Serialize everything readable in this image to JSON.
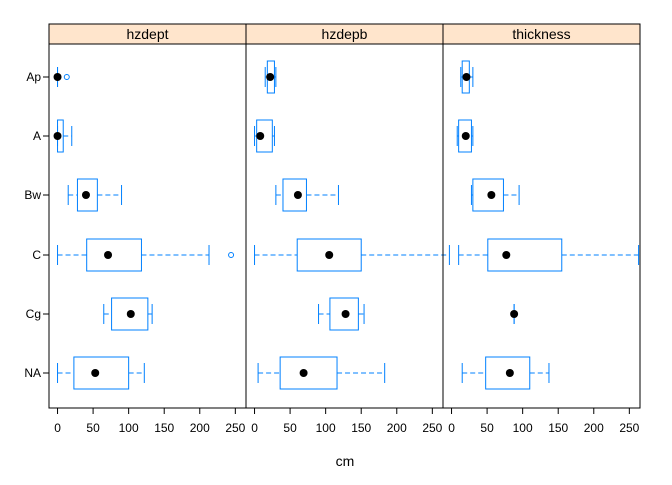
{
  "chart_data": {
    "type": "boxplot",
    "xlabel": "cm",
    "categories": [
      "Ap",
      "A",
      "Bw",
      "C",
      "Cg",
      "NA"
    ],
    "panels": [
      {
        "name": "hzdept",
        "boxes": [
          {
            "category": "Ap",
            "min": 0,
            "q1": 0,
            "median": 0,
            "q3": 0,
            "max": 0,
            "outliers": [
              13
            ]
          },
          {
            "category": "A",
            "min": 0,
            "q1": 0,
            "median": 0,
            "q3": 8,
            "max": 20,
            "outliers": []
          },
          {
            "category": "Bw",
            "min": 15,
            "q1": 28,
            "median": 40,
            "q3": 56,
            "max": 90,
            "outliers": []
          },
          {
            "category": "C",
            "min": 0,
            "q1": 41,
            "median": 71,
            "q3": 118,
            "max": 213,
            "outliers": [
              244
            ]
          },
          {
            "category": "Cg",
            "min": 65,
            "q1": 76,
            "median": 103,
            "q3": 127,
            "max": 133,
            "outliers": []
          },
          {
            "category": "NA",
            "min": 0,
            "q1": 23,
            "median": 53,
            "q3": 100,
            "max": 122,
            "outliers": []
          }
        ]
      },
      {
        "name": "hzdepb",
        "boxes": [
          {
            "category": "Ap",
            "min": 15,
            "q1": 18,
            "median": 22,
            "q3": 28,
            "max": 30,
            "outliers": []
          },
          {
            "category": "A",
            "min": 0,
            "q1": 3,
            "median": 8,
            "q3": 25,
            "max": 28,
            "outliers": []
          },
          {
            "category": "Bw",
            "min": 30,
            "q1": 40,
            "median": 61,
            "q3": 73,
            "max": 118,
            "outliers": []
          },
          {
            "category": "C",
            "min": 0,
            "q1": 60,
            "median": 105,
            "q3": 150,
            "max": 274,
            "outliers": []
          },
          {
            "category": "Cg",
            "min": 90,
            "q1": 106,
            "median": 128,
            "q3": 146,
            "max": 154,
            "outliers": []
          },
          {
            "category": "NA",
            "min": 5,
            "q1": 36,
            "median": 69,
            "q3": 116,
            "max": 183,
            "outliers": []
          }
        ]
      },
      {
        "name": "thickness",
        "boxes": [
          {
            "category": "Ap",
            "min": 13,
            "q1": 15,
            "median": 21,
            "q3": 25,
            "max": 30,
            "outliers": []
          },
          {
            "category": "A",
            "min": 8,
            "q1": 10,
            "median": 20,
            "q3": 28,
            "max": 30,
            "outliers": []
          },
          {
            "category": "Bw",
            "min": 28,
            "q1": 30,
            "median": 56,
            "q3": 73,
            "max": 95,
            "outliers": []
          },
          {
            "category": "C",
            "min": 10,
            "q1": 51,
            "median": 77,
            "q3": 155,
            "max": 263,
            "outliers": []
          },
          {
            "category": "Cg",
            "min": 88,
            "q1": 88,
            "median": 88,
            "q3": 88,
            "max": 88,
            "outliers": []
          },
          {
            "category": "NA",
            "min": 15,
            "q1": 48,
            "median": 82,
            "q3": 110,
            "max": 137,
            "outliers": []
          }
        ]
      }
    ],
    "xlim": [
      -12,
      265
    ],
    "xticks": [
      0,
      50,
      100,
      150,
      200,
      250
    ],
    "colors": {
      "strip_bg": "#ffe5cc",
      "box": "#0080ff",
      "median_dot": "#000000",
      "frame": "#000000"
    }
  }
}
